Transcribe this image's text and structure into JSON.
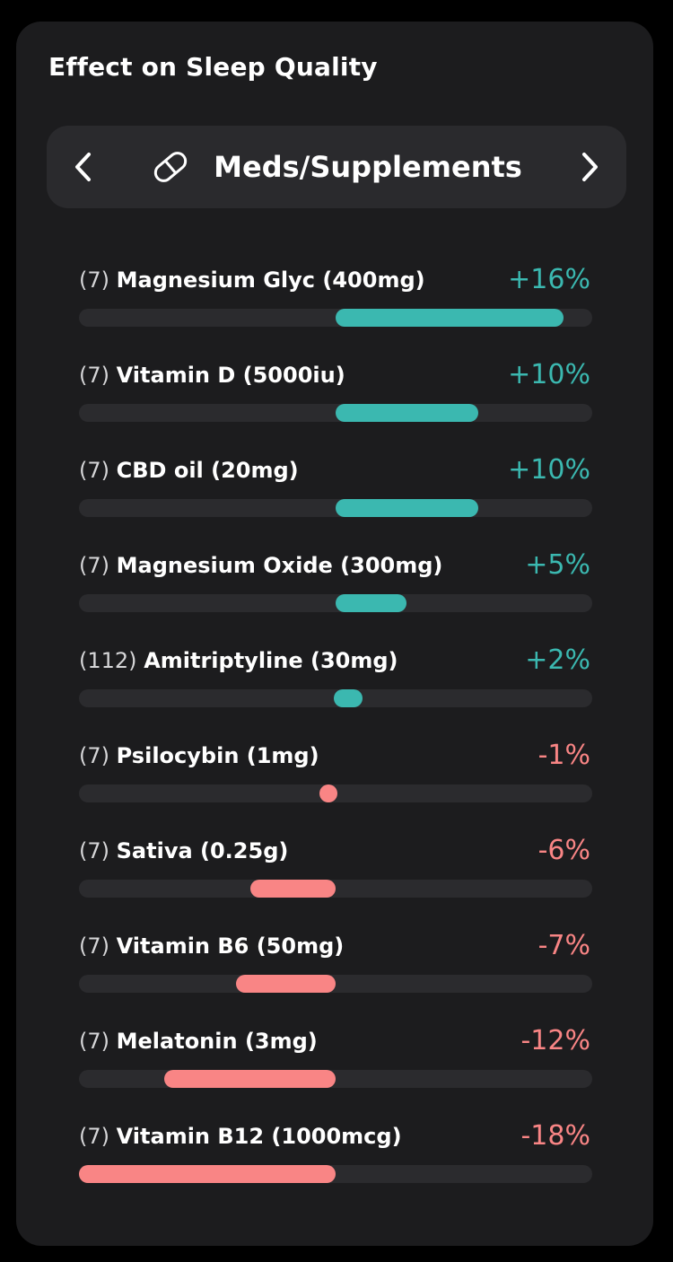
{
  "card": {
    "title": "Effect on Sleep Quality"
  },
  "selector": {
    "category_label": "Meds/Supplements",
    "category_icon": "pill-icon",
    "prev_icon": "chevron-left-icon",
    "next_icon": "chevron-right-icon"
  },
  "colors": {
    "positive": "#3bb8b0",
    "negative": "#f98585"
  },
  "items": [
    {
      "count": "(7)",
      "name": "Magnesium Glyc (400mg)",
      "percent_label": "+16%",
      "value": 16
    },
    {
      "count": "(7)",
      "name": "Vitamin D (5000iu)",
      "percent_label": "+10%",
      "value": 10
    },
    {
      "count": "(7)",
      "name": "CBD oil (20mg)",
      "percent_label": "+10%",
      "value": 10
    },
    {
      "count": "(7)",
      "name": "Magnesium Oxide (300mg)",
      "percent_label": "+5%",
      "value": 5
    },
    {
      "count": "(112)",
      "name": "Amitriptyline (30mg)",
      "percent_label": "+2%",
      "value": 2
    },
    {
      "count": "(7)",
      "name": "Psilocybin (1mg)",
      "percent_label": "-1%",
      "value": -1
    },
    {
      "count": "(7)",
      "name": "Sativa (0.25g)",
      "percent_label": "-6%",
      "value": -6
    },
    {
      "count": "(7)",
      "name": "Vitamin B6 (50mg)",
      "percent_label": "-7%",
      "value": -7
    },
    {
      "count": "(7)",
      "name": "Melatonin (3mg)",
      "percent_label": "-12%",
      "value": -12
    },
    {
      "count": "(7)",
      "name": "Vitamin B12 (1000mcg)",
      "percent_label": "-18%",
      "value": -18
    }
  ]
}
